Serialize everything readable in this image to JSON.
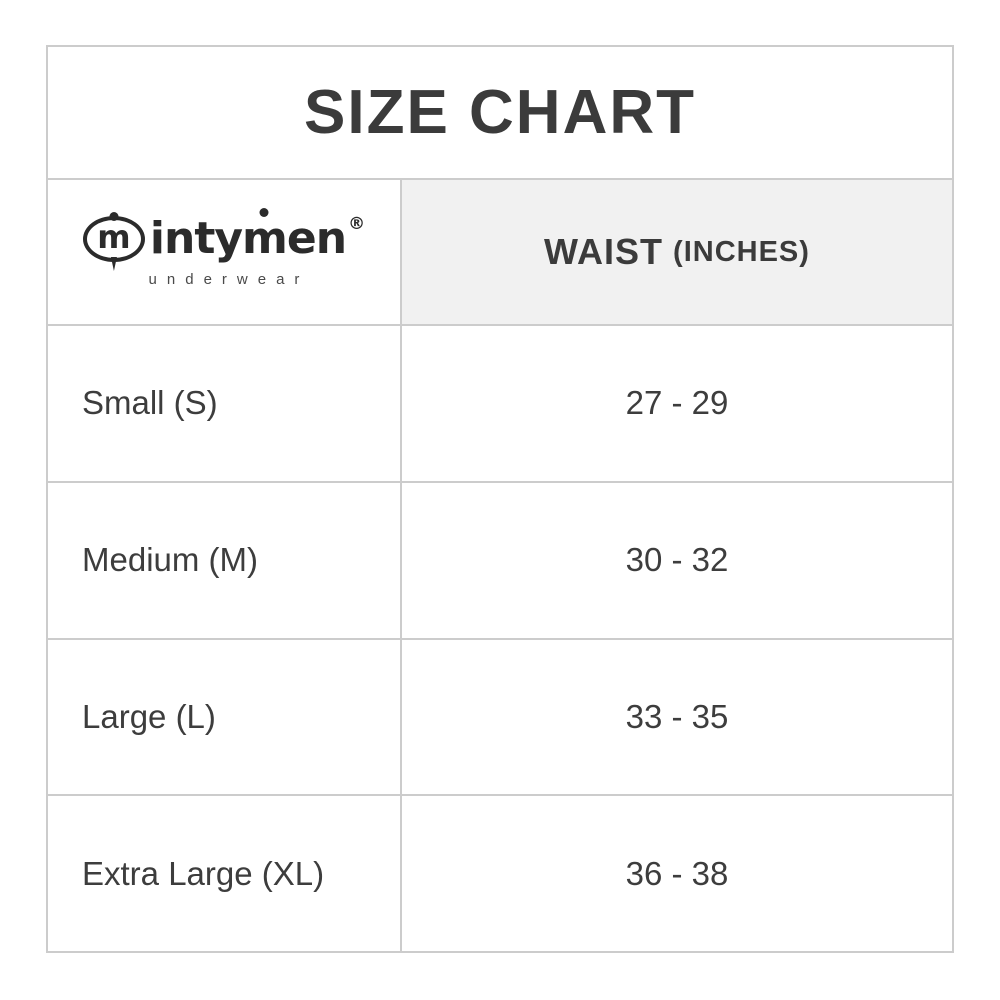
{
  "title": "SIZE CHART",
  "brand": {
    "mark_letter": "m",
    "wordmark_pre": "inty",
    "wordmark_m": "m",
    "wordmark_post": "en",
    "registered": "®",
    "tagline": "underwear"
  },
  "header": {
    "waist_label": "WAIST",
    "waist_unit": "(INCHES)"
  },
  "rows": [
    {
      "size": "Small (S)",
      "waist": "27 - 29"
    },
    {
      "size": "Medium (M)",
      "waist": "30 - 32"
    },
    {
      "size": "Large (L)",
      "waist": "33 - 35"
    },
    {
      "size": "Extra Large (XL)",
      "waist": "36 - 38"
    }
  ],
  "colors": {
    "border": "#cccccc",
    "header_background": "#f1f1f1",
    "text": "#3d3d3d",
    "logo": "#2b2b2b"
  }
}
